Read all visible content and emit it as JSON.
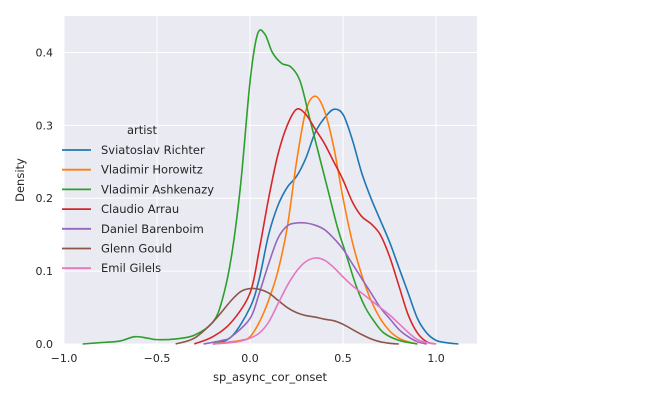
{
  "chart_data": {
    "type": "line",
    "title": "",
    "xlabel": "sp_async_cor_onset",
    "ylabel": "Density",
    "xlim": [
      -1.0,
      1.22
    ],
    "ylim": [
      0.0,
      0.45
    ],
    "xticks": [
      -1.0,
      -0.5,
      0.0,
      0.5,
      1.0
    ],
    "xtick_labels": [
      "−1.0",
      "−0.5",
      "0.0",
      "0.5",
      "1.0"
    ],
    "yticks": [
      0.0,
      0.1,
      0.2,
      0.3,
      0.4
    ],
    "ytick_labels": [
      "0.0",
      "0.1",
      "0.2",
      "0.3",
      "0.4"
    ],
    "grid": true,
    "legend": {
      "title": "artist",
      "placement": "center-left"
    },
    "series": [
      {
        "name": "Sviatoslav Richter",
        "color": "#1f77b4",
        "points": [
          [
            -0.2,
            0.0
          ],
          [
            -0.1,
            0.01
          ],
          [
            0.0,
            0.05
          ],
          [
            0.05,
            0.09
          ],
          [
            0.1,
            0.15
          ],
          [
            0.15,
            0.19
          ],
          [
            0.2,
            0.215
          ],
          [
            0.25,
            0.23
          ],
          [
            0.3,
            0.255
          ],
          [
            0.35,
            0.29
          ],
          [
            0.4,
            0.31
          ],
          [
            0.45,
            0.322
          ],
          [
            0.5,
            0.315
          ],
          [
            0.55,
            0.28
          ],
          [
            0.6,
            0.235
          ],
          [
            0.65,
            0.2
          ],
          [
            0.7,
            0.17
          ],
          [
            0.75,
            0.14
          ],
          [
            0.8,
            0.105
          ],
          [
            0.85,
            0.07
          ],
          [
            0.9,
            0.035
          ],
          [
            0.95,
            0.015
          ],
          [
            1.0,
            0.005
          ],
          [
            1.05,
            0.002
          ],
          [
            1.12,
            0.0
          ]
        ]
      },
      {
        "name": "Vladimir Horowitz",
        "color": "#ff7f0e",
        "points": [
          [
            -0.2,
            0.0
          ],
          [
            -0.05,
            0.005
          ],
          [
            0.0,
            0.01
          ],
          [
            0.05,
            0.03
          ],
          [
            0.1,
            0.06
          ],
          [
            0.15,
            0.1
          ],
          [
            0.2,
            0.16
          ],
          [
            0.25,
            0.25
          ],
          [
            0.3,
            0.32
          ],
          [
            0.35,
            0.34
          ],
          [
            0.4,
            0.32
          ],
          [
            0.45,
            0.27
          ],
          [
            0.5,
            0.2
          ],
          [
            0.55,
            0.14
          ],
          [
            0.6,
            0.095
          ],
          [
            0.65,
            0.06
          ],
          [
            0.7,
            0.035
          ],
          [
            0.75,
            0.018
          ],
          [
            0.8,
            0.008
          ],
          [
            0.85,
            0.003
          ],
          [
            0.9,
            0.0
          ]
        ]
      },
      {
        "name": "Vladimir Ashkenazy",
        "color": "#2ca02c",
        "points": [
          [
            -0.9,
            0.0
          ],
          [
            -0.8,
            0.002
          ],
          [
            -0.7,
            0.004
          ],
          [
            -0.62,
            0.01
          ],
          [
            -0.55,
            0.008
          ],
          [
            -0.5,
            0.006
          ],
          [
            -0.4,
            0.007
          ],
          [
            -0.3,
            0.012
          ],
          [
            -0.2,
            0.03
          ],
          [
            -0.15,
            0.06
          ],
          [
            -0.1,
            0.12
          ],
          [
            -0.05,
            0.22
          ],
          [
            0.0,
            0.36
          ],
          [
            0.04,
            0.425
          ],
          [
            0.08,
            0.425
          ],
          [
            0.12,
            0.4
          ],
          [
            0.17,
            0.385
          ],
          [
            0.22,
            0.38
          ],
          [
            0.27,
            0.36
          ],
          [
            0.32,
            0.31
          ],
          [
            0.37,
            0.26
          ],
          [
            0.42,
            0.21
          ],
          [
            0.47,
            0.16
          ],
          [
            0.52,
            0.12
          ],
          [
            0.57,
            0.08
          ],
          [
            0.62,
            0.05
          ],
          [
            0.67,
            0.03
          ],
          [
            0.72,
            0.015
          ],
          [
            0.8,
            0.005
          ],
          [
            0.9,
            0.0
          ]
        ]
      },
      {
        "name": "Claudio Arrau",
        "color": "#d62728",
        "points": [
          [
            -0.3,
            0.0
          ],
          [
            -0.2,
            0.01
          ],
          [
            -0.1,
            0.03
          ],
          [
            0.0,
            0.07
          ],
          [
            0.05,
            0.13
          ],
          [
            0.1,
            0.2
          ],
          [
            0.15,
            0.26
          ],
          [
            0.2,
            0.3
          ],
          [
            0.25,
            0.322
          ],
          [
            0.3,
            0.315
          ],
          [
            0.35,
            0.295
          ],
          [
            0.4,
            0.275
          ],
          [
            0.45,
            0.25
          ],
          [
            0.5,
            0.225
          ],
          [
            0.55,
            0.195
          ],
          [
            0.6,
            0.175
          ],
          [
            0.65,
            0.165
          ],
          [
            0.7,
            0.15
          ],
          [
            0.75,
            0.12
          ],
          [
            0.8,
            0.08
          ],
          [
            0.85,
            0.04
          ],
          [
            0.9,
            0.015
          ],
          [
            0.95,
            0.003
          ],
          [
            1.0,
            0.0
          ]
        ]
      },
      {
        "name": "Daniel Barenboim",
        "color": "#9467bd",
        "points": [
          [
            -0.25,
            0.0
          ],
          [
            -0.15,
            0.005
          ],
          [
            -0.1,
            0.01
          ],
          [
            0.0,
            0.035
          ],
          [
            0.05,
            0.07
          ],
          [
            0.1,
            0.11
          ],
          [
            0.15,
            0.145
          ],
          [
            0.2,
            0.162
          ],
          [
            0.25,
            0.166
          ],
          [
            0.3,
            0.166
          ],
          [
            0.35,
            0.163
          ],
          [
            0.4,
            0.157
          ],
          [
            0.45,
            0.145
          ],
          [
            0.5,
            0.13
          ],
          [
            0.55,
            0.11
          ],
          [
            0.6,
            0.09
          ],
          [
            0.65,
            0.07
          ],
          [
            0.7,
            0.05
          ],
          [
            0.75,
            0.035
          ],
          [
            0.8,
            0.02
          ],
          [
            0.85,
            0.01
          ],
          [
            0.9,
            0.003
          ],
          [
            0.95,
            0.0
          ]
        ]
      },
      {
        "name": "Glenn Gould",
        "color": "#8c564b",
        "points": [
          [
            -0.4,
            0.0
          ],
          [
            -0.3,
            0.008
          ],
          [
            -0.2,
            0.03
          ],
          [
            -0.1,
            0.06
          ],
          [
            -0.05,
            0.072
          ],
          [
            0.0,
            0.076
          ],
          [
            0.05,
            0.075
          ],
          [
            0.1,
            0.07
          ],
          [
            0.15,
            0.06
          ],
          [
            0.2,
            0.05
          ],
          [
            0.25,
            0.043
          ],
          [
            0.3,
            0.039
          ],
          [
            0.35,
            0.037
          ],
          [
            0.4,
            0.034
          ],
          [
            0.45,
            0.032
          ],
          [
            0.5,
            0.027
          ],
          [
            0.55,
            0.02
          ],
          [
            0.6,
            0.013
          ],
          [
            0.65,
            0.007
          ],
          [
            0.7,
            0.003
          ],
          [
            0.75,
            0.001
          ],
          [
            0.8,
            0.0
          ]
        ]
      },
      {
        "name": "Emil Gilels",
        "color": "#e377c2",
        "points": [
          [
            -0.2,
            0.0
          ],
          [
            -0.1,
            0.002
          ],
          [
            -0.05,
            0.004
          ],
          [
            0.0,
            0.008
          ],
          [
            0.05,
            0.015
          ],
          [
            0.1,
            0.03
          ],
          [
            0.15,
            0.055
          ],
          [
            0.2,
            0.08
          ],
          [
            0.25,
            0.1
          ],
          [
            0.3,
            0.113
          ],
          [
            0.35,
            0.118
          ],
          [
            0.4,
            0.115
          ],
          [
            0.45,
            0.105
          ],
          [
            0.5,
            0.092
          ],
          [
            0.55,
            0.08
          ],
          [
            0.6,
            0.07
          ],
          [
            0.65,
            0.06
          ],
          [
            0.7,
            0.05
          ],
          [
            0.75,
            0.04
          ],
          [
            0.8,
            0.028
          ],
          [
            0.85,
            0.016
          ],
          [
            0.9,
            0.006
          ],
          [
            0.95,
            0.002
          ],
          [
            1.0,
            0.0
          ]
        ]
      }
    ]
  }
}
